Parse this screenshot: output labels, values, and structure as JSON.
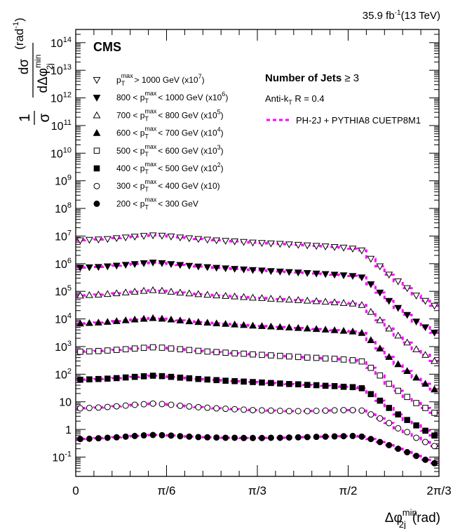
{
  "header": {
    "lumi_value": "35.9",
    "lumi_unit": "fb",
    "lumi_exp": "-1",
    "energy": "(13 TeV)"
  },
  "experiment": "CMS",
  "yaxis": {
    "frac_num": "1",
    "frac_den": "σ",
    "d_num": "dσ",
    "d_den_main": "dΔφ",
    "d_den_sup": "min",
    "d_den_sub": "2j",
    "unit_main": "(rad",
    "unit_sup": "-1",
    "unit_close": ")"
  },
  "xaxis": {
    "main": "Δφ",
    "sup": "min",
    "sub": "2j",
    "unit": "(rad)"
  },
  "info": {
    "title_main": "Number of Jets ",
    "title_rel": "≥ 3",
    "algo_main": "Anti-k",
    "algo_sub": "T",
    "algo_rest": " R = 0.4",
    "mc_label": "PH-2J + PYTHIA8 CUETP8M1"
  },
  "legend": [
    {
      "pre": "p",
      "sup": "max",
      "sub": "T",
      "post": " > 1000 GeV (x10",
      "exp": "7",
      "end": ")"
    },
    {
      "pre": "800 < p",
      "sup": "max",
      "sub": "T",
      "post": " < 1000 GeV (x10",
      "exp": "6",
      "end": ")"
    },
    {
      "pre": "700 < p",
      "sup": "max",
      "sub": "T",
      "post": " < 800 GeV (x10",
      "exp": "5",
      "end": ")"
    },
    {
      "pre": "600 < p",
      "sup": "max",
      "sub": "T",
      "post": " < 700 GeV (x10",
      "exp": "4",
      "end": ")"
    },
    {
      "pre": "500 < p",
      "sup": "max",
      "sub": "T",
      "post": " < 600 GeV (x10",
      "exp": "3",
      "end": ")"
    },
    {
      "pre": "400 < p",
      "sup": "max",
      "sub": "T",
      "post": " < 500 GeV (x10",
      "exp": "2",
      "end": ")"
    },
    {
      "pre": "300 < p",
      "sup": "max",
      "sub": "T",
      "post": " < 400 GeV (x10)",
      "exp": "",
      "end": ""
    },
    {
      "pre": "200 < p",
      "sup": "max",
      "sub": "T",
      "post": " < 300 GeV",
      "exp": "",
      "end": ""
    }
  ],
  "colors": {
    "mc": "#ff00ff",
    "data": "#000000",
    "frame": "#000000"
  },
  "chart_data": {
    "type": "scatter",
    "ylog": true,
    "xlim": [
      0,
      2.0944
    ],
    "ylim": [
      0.02,
      300000000000000
    ],
    "xticks": [
      {
        "value": 0,
        "label": "0"
      },
      {
        "value": 0.5236,
        "label": "π/6"
      },
      {
        "value": 1.0472,
        "label": "π/3"
      },
      {
        "value": 1.5708,
        "label": "π/2"
      },
      {
        "value": 2.0944,
        "label": "2π/3"
      }
    ],
    "yticks": [
      {
        "value": 0.1,
        "base": "10",
        "exp": "-1"
      },
      {
        "value": 1,
        "base": "1",
        "exp": ""
      },
      {
        "value": 10,
        "base": "10",
        "exp": ""
      },
      {
        "value": 100,
        "base": "10",
        "exp": "2"
      },
      {
        "value": 1000,
        "base": "10",
        "exp": "3"
      },
      {
        "value": 10000,
        "base": "10",
        "exp": "4"
      },
      {
        "value": 100000,
        "base": "10",
        "exp": "5"
      },
      {
        "value": 1000000,
        "base": "10",
        "exp": "6"
      },
      {
        "value": 10000000,
        "base": "10",
        "exp": "7"
      },
      {
        "value": 100000000,
        "base": "10",
        "exp": "8"
      },
      {
        "value": 1000000000,
        "base": "10",
        "exp": "9"
      },
      {
        "value": 10000000000,
        "base": "10",
        "exp": "10"
      },
      {
        "value": 100000000000,
        "base": "10",
        "exp": "11"
      },
      {
        "value": 1000000000000,
        "base": "10",
        "exp": "12"
      },
      {
        "value": 10000000000000,
        "base": "10",
        "exp": "13"
      },
      {
        "value": 100000000000000,
        "base": "10",
        "exp": "14"
      }
    ],
    "x": [
      0.0262,
      0.0785,
      0.1309,
      0.1833,
      0.2356,
      0.288,
      0.3403,
      0.3927,
      0.4451,
      0.4974,
      0.5498,
      0.6021,
      0.6545,
      0.7069,
      0.7592,
      0.8116,
      0.8639,
      0.9163,
      0.9687,
      1.021,
      1.0734,
      1.1257,
      1.1781,
      1.2305,
      1.2828,
      1.3352,
      1.3875,
      1.4399,
      1.4923,
      1.5446,
      1.597,
      1.6493,
      1.7017,
      1.7541,
      1.8064,
      1.8588,
      1.9111,
      1.9635,
      2.0159,
      2.0682
    ],
    "series": [
      {
        "marker": "triangle-down-open",
        "values": [
          7000000,
          7300000,
          7500000,
          7800000,
          8400000,
          8900000,
          9500000,
          10100000,
          10600000,
          10300000,
          9600000,
          8900000,
          8300000,
          7800000,
          7400000,
          7000000,
          6700000,
          6400000,
          6100000,
          5800000,
          5600000,
          5400000,
          5200000,
          5000000,
          4800000,
          4600000,
          4400000,
          4200000,
          4000000,
          3800000,
          3500000,
          3000000,
          1500000,
          800000,
          400000,
          230000,
          130000,
          70000,
          45000,
          30000
        ]
      },
      {
        "marker": "triangle-down",
        "values": [
          720000,
          740000,
          760000,
          800000,
          850000,
          910000,
          970000,
          1040000,
          1100000,
          1050000,
          970000,
          900000,
          840000,
          790000,
          750000,
          710000,
          680000,
          650000,
          620000,
          590000,
          570000,
          540000,
          520000,
          500000,
          480000,
          460000,
          440000,
          420000,
          400000,
          380000,
          360000,
          320000,
          180000,
          90000,
          45000,
          25000,
          14000,
          8000,
          5000,
          3200
        ]
      },
      {
        "marker": "triangle-up-open",
        "values": [
          70000,
          73000,
          76000,
          80000,
          85000,
          91000,
          97000,
          104000,
          110000,
          105000,
          97000,
          90000,
          84000,
          79000,
          75000,
          71000,
          68000,
          65000,
          62000,
          59000,
          57000,
          54000,
          52000,
          50000,
          48000,
          46000,
          44000,
          42000,
          40000,
          38000,
          36000,
          32000,
          18000,
          9000,
          4500,
          2500,
          1400,
          800,
          500,
          300
        ]
      },
      {
        "marker": "triangle-up",
        "values": [
          6800,
          7100,
          7400,
          7800,
          8300,
          8900,
          9500,
          10100,
          10700,
          10200,
          9500,
          8800,
          8200,
          7700,
          7300,
          6900,
          6600,
          6300,
          6000,
          5700,
          5500,
          5300,
          5100,
          4900,
          4700,
          4500,
          4300,
          4100,
          3900,
          3700,
          3500,
          3100,
          1700,
          850,
          420,
          230,
          130,
          75,
          45,
          28
        ]
      },
      {
        "marker": "square-open",
        "values": [
          650,
          670,
          690,
          720,
          760,
          800,
          850,
          900,
          940,
          910,
          850,
          800,
          750,
          700,
          660,
          630,
          600,
          570,
          550,
          520,
          500,
          480,
          460,
          440,
          420,
          400,
          390,
          370,
          360,
          340,
          320,
          290,
          170,
          90,
          45,
          25,
          15,
          9,
          6,
          4
        ]
      },
      {
        "marker": "square",
        "values": [
          63,
          65,
          67,
          69,
          72,
          76,
          80,
          84,
          88,
          85,
          80,
          75,
          71,
          67,
          64,
          61,
          58,
          56,
          54,
          52,
          50,
          48,
          46,
          44,
          43,
          41,
          40,
          38,
          37,
          35,
          34,
          31,
          19,
          11,
          6,
          3.5,
          2.2,
          1.4,
          0.9,
          0.6
        ]
      },
      {
        "marker": "circle-open",
        "values": [
          5.8,
          6.0,
          6.2,
          6.5,
          6.9,
          7.3,
          7.8,
          8.2,
          8.6,
          8.3,
          7.8,
          7.2,
          6.8,
          6.4,
          6.1,
          5.8,
          5.6,
          5.4,
          5.2,
          5.0,
          4.9,
          4.8,
          4.7,
          4.6,
          4.6,
          4.6,
          4.7,
          4.8,
          4.9,
          5.0,
          5.0,
          4.8,
          3.5,
          2.5,
          1.7,
          1.1,
          0.8,
          0.5,
          0.35,
          0.25
        ]
      },
      {
        "marker": "circle",
        "values": [
          0.45,
          0.46,
          0.48,
          0.5,
          0.52,
          0.55,
          0.58,
          0.61,
          0.63,
          0.62,
          0.6,
          0.57,
          0.55,
          0.53,
          0.52,
          0.51,
          0.5,
          0.5,
          0.49,
          0.49,
          0.49,
          0.5,
          0.5,
          0.51,
          0.52,
          0.53,
          0.54,
          0.55,
          0.56,
          0.57,
          0.58,
          0.55,
          0.45,
          0.35,
          0.27,
          0.2,
          0.15,
          0.11,
          0.08,
          0.06
        ]
      }
    ]
  }
}
